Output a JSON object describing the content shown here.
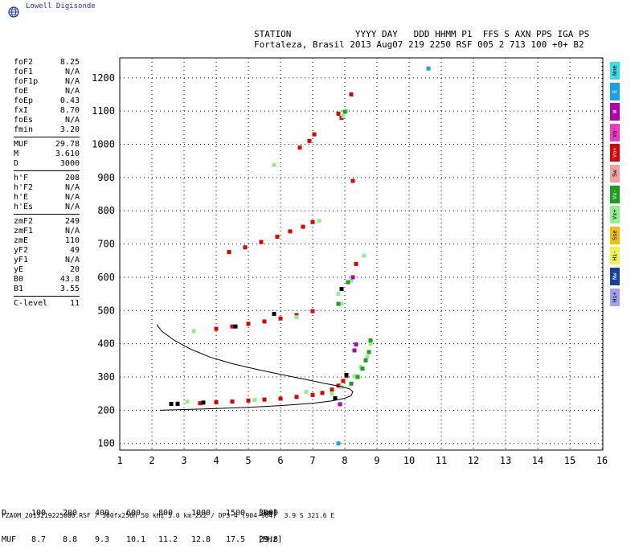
{
  "app": {
    "logo_text": "Lowell Digisonde"
  },
  "header": {
    "line1": "STATION            YYYY DAY   DDD HHMM P1  FFS S AXN PPS IGA PS",
    "line2": "Fortaleza, Brasil 2013 Aug07 219 2250 RSF 005 2 713 100 +0+ B2"
  },
  "params": {
    "group1": [
      {
        "label": "foF2",
        "value": "8.25"
      },
      {
        "label": "foF1",
        "value": "N/A"
      },
      {
        "label": "foF1p",
        "value": "N/A"
      },
      {
        "label": "foE",
        "value": "N/A"
      },
      {
        "label": "foEp",
        "value": "0.43"
      },
      {
        "label": "fxI",
        "value": "8.70"
      },
      {
        "label": "foEs",
        "value": "N/A"
      },
      {
        "label": "fmin",
        "value": "3.20"
      }
    ],
    "group2": [
      {
        "label": "MUF",
        "value": "29.78"
      },
      {
        "label": "M",
        "value": "3.610"
      },
      {
        "label": "D",
        "value": "3000"
      }
    ],
    "group3": [
      {
        "label": "h'F",
        "value": "208"
      },
      {
        "label": "h'F2",
        "value": "N/A"
      },
      {
        "label": "h'E",
        "value": "N/A"
      },
      {
        "label": "h'Es",
        "value": "N/A"
      }
    ],
    "group4": [
      {
        "label": "zmF2",
        "value": "249"
      },
      {
        "label": "zmF1",
        "value": "N/A"
      },
      {
        "label": "zmE",
        "value": "110"
      },
      {
        "label": "yF2",
        "value": "49"
      },
      {
        "label": "yF1",
        "value": "N/A"
      },
      {
        "label": "yE",
        "value": "20"
      },
      {
        "label": "B0",
        "value": "43.8"
      },
      {
        "label": "B1",
        "value": "3.55"
      }
    ],
    "group5": [
      {
        "label": "C-level",
        "value": "11"
      }
    ]
  },
  "legend": [
    {
      "label": "Nne",
      "color": "#33e0e8"
    },
    {
      "label": "E",
      "color": "#1aa0e8"
    },
    {
      "label": "W",
      "color": "#b000b0"
    },
    {
      "label": "Vo-",
      "color": "#f038c8"
    },
    {
      "label": "Vo+",
      "color": "#e00000"
    },
    {
      "label": "Sw",
      "color": "#f0a0a0"
    },
    {
      "label": "Vx-",
      "color": "#18a018"
    },
    {
      "label": "Vx+",
      "color": "#90f090"
    },
    {
      "label": "Sse",
      "color": "#f0c000"
    },
    {
      "label": "Hi-",
      "color": "#f0f050"
    },
    {
      "label": "Nw",
      "color": "#1840a0"
    },
    {
      "label": "Hi+",
      "color": "#a0a0f0"
    }
  ],
  "muf_table": {
    "d_label": "D",
    "d_values": [
      "100",
      "200",
      "400",
      "600",
      "800",
      "1000",
      "1500",
      "3000"
    ],
    "d_unit": "[km]",
    "muf_label": "MUF",
    "muf_values": [
      "8.7",
      "8.8",
      "9.3",
      "10.1",
      "11.2",
      "12.8",
      "17.5",
      "29.8"
    ],
    "muf_unit": "[MHz]"
  },
  "footer": "FZA0M_2013219225000.RSF / 300fx256h 50 kHz 5.0 km 2x2 / DPS-4 (904-904)  3.9 S 321.6 E",
  "chart_data": {
    "type": "scatter",
    "xlim": [
      1,
      16
    ],
    "ylim": [
      80,
      1260
    ],
    "x_ticks": [
      1,
      2,
      3,
      4,
      5,
      6,
      7,
      8,
      9,
      10,
      11,
      12,
      13,
      14,
      15,
      16
    ],
    "y_ticks": [
      100,
      200,
      300,
      400,
      500,
      600,
      700,
      800,
      900,
      1000,
      1100,
      1200
    ],
    "grid": true,
    "profile_curve": [
      [
        2.25,
        200
      ],
      [
        3,
        202
      ],
      [
        4,
        205
      ],
      [
        5,
        209
      ],
      [
        6,
        214
      ],
      [
        7,
        221
      ],
      [
        7.6,
        228
      ],
      [
        8,
        236
      ],
      [
        8.2,
        244
      ],
      [
        8.25,
        256
      ],
      [
        8.15,
        264
      ],
      [
        7.9,
        271
      ],
      [
        7.4,
        280
      ],
      [
        6.8,
        292
      ],
      [
        6,
        308
      ],
      [
        5.3,
        322
      ],
      [
        4.5,
        340
      ],
      [
        3.8,
        360
      ],
      [
        3.2,
        384
      ],
      [
        2.7,
        410
      ],
      [
        2.3,
        438
      ],
      [
        2.15,
        458
      ]
    ],
    "series": [
      {
        "color": "#e00000",
        "points": [
          [
            3.5,
            221
          ],
          [
            4,
            224
          ],
          [
            4.5,
            226
          ],
          [
            5,
            229
          ],
          [
            5.5,
            232
          ],
          [
            6,
            235
          ],
          [
            6.5,
            240
          ],
          [
            7,
            246
          ],
          [
            7.3,
            252
          ],
          [
            7.6,
            262
          ],
          [
            7.8,
            274
          ],
          [
            7.95,
            288
          ],
          [
            8.05,
            303
          ],
          [
            4,
            445
          ],
          [
            4.5,
            452
          ],
          [
            5,
            460
          ],
          [
            5.5,
            467
          ],
          [
            6,
            476
          ],
          [
            6.5,
            486
          ],
          [
            7,
            498
          ],
          [
            4.4,
            676
          ],
          [
            4.9,
            690
          ],
          [
            5.4,
            706
          ],
          [
            5.9,
            722
          ],
          [
            6.3,
            738
          ],
          [
            6.7,
            752
          ],
          [
            7,
            766
          ],
          [
            6.6,
            990
          ],
          [
            6.9,
            1010
          ],
          [
            7.05,
            1030
          ],
          [
            7.8,
            1092
          ],
          [
            7.9,
            1080
          ],
          [
            8.2,
            1150
          ],
          [
            8.25,
            890
          ],
          [
            8.35,
            640
          ]
        ]
      },
      {
        "color": "#90f090",
        "points": [
          [
            2.8,
            222
          ],
          [
            3.1,
            226
          ],
          [
            5.2,
            231
          ],
          [
            6.8,
            255
          ],
          [
            7.6,
            250
          ],
          [
            7.9,
            270
          ],
          [
            8.3,
            302
          ],
          [
            8.5,
            330
          ],
          [
            8.7,
            360
          ],
          [
            8.8,
            400
          ],
          [
            3.3,
            438
          ],
          [
            6.5,
            480
          ],
          [
            7.9,
            520
          ],
          [
            7.8,
            550
          ],
          [
            8.2,
            590
          ],
          [
            8.6,
            665
          ],
          [
            7.2,
            770
          ],
          [
            5.8,
            938
          ],
          [
            8.05,
            1100
          ],
          [
            7.95,
            1085
          ]
        ]
      },
      {
        "color": "#18a018",
        "points": [
          [
            8.2,
            280
          ],
          [
            8.4,
            300
          ],
          [
            8.55,
            325
          ],
          [
            8.65,
            350
          ],
          [
            8.75,
            375
          ],
          [
            8.8,
            410
          ],
          [
            7.8,
            520
          ],
          [
            8.1,
            585
          ],
          [
            8,
            1098
          ]
        ]
      },
      {
        "color": "#000000",
        "points": [
          [
            2.6,
            219
          ],
          [
            2.8,
            219
          ],
          [
            3.6,
            223
          ],
          [
            4.6,
            452
          ],
          [
            5.8,
            490
          ],
          [
            7.9,
            565
          ],
          [
            7.7,
            236
          ],
          [
            8.05,
            306
          ]
        ]
      },
      {
        "color": "#b000b0",
        "points": [
          [
            8.3,
            380
          ],
          [
            8.35,
            398
          ],
          [
            7.85,
            218
          ],
          [
            8.25,
            600
          ]
        ]
      },
      {
        "color": "#1aa0e8",
        "points": [
          [
            10.6,
            1228
          ],
          [
            7.8,
            100
          ]
        ]
      }
    ]
  }
}
